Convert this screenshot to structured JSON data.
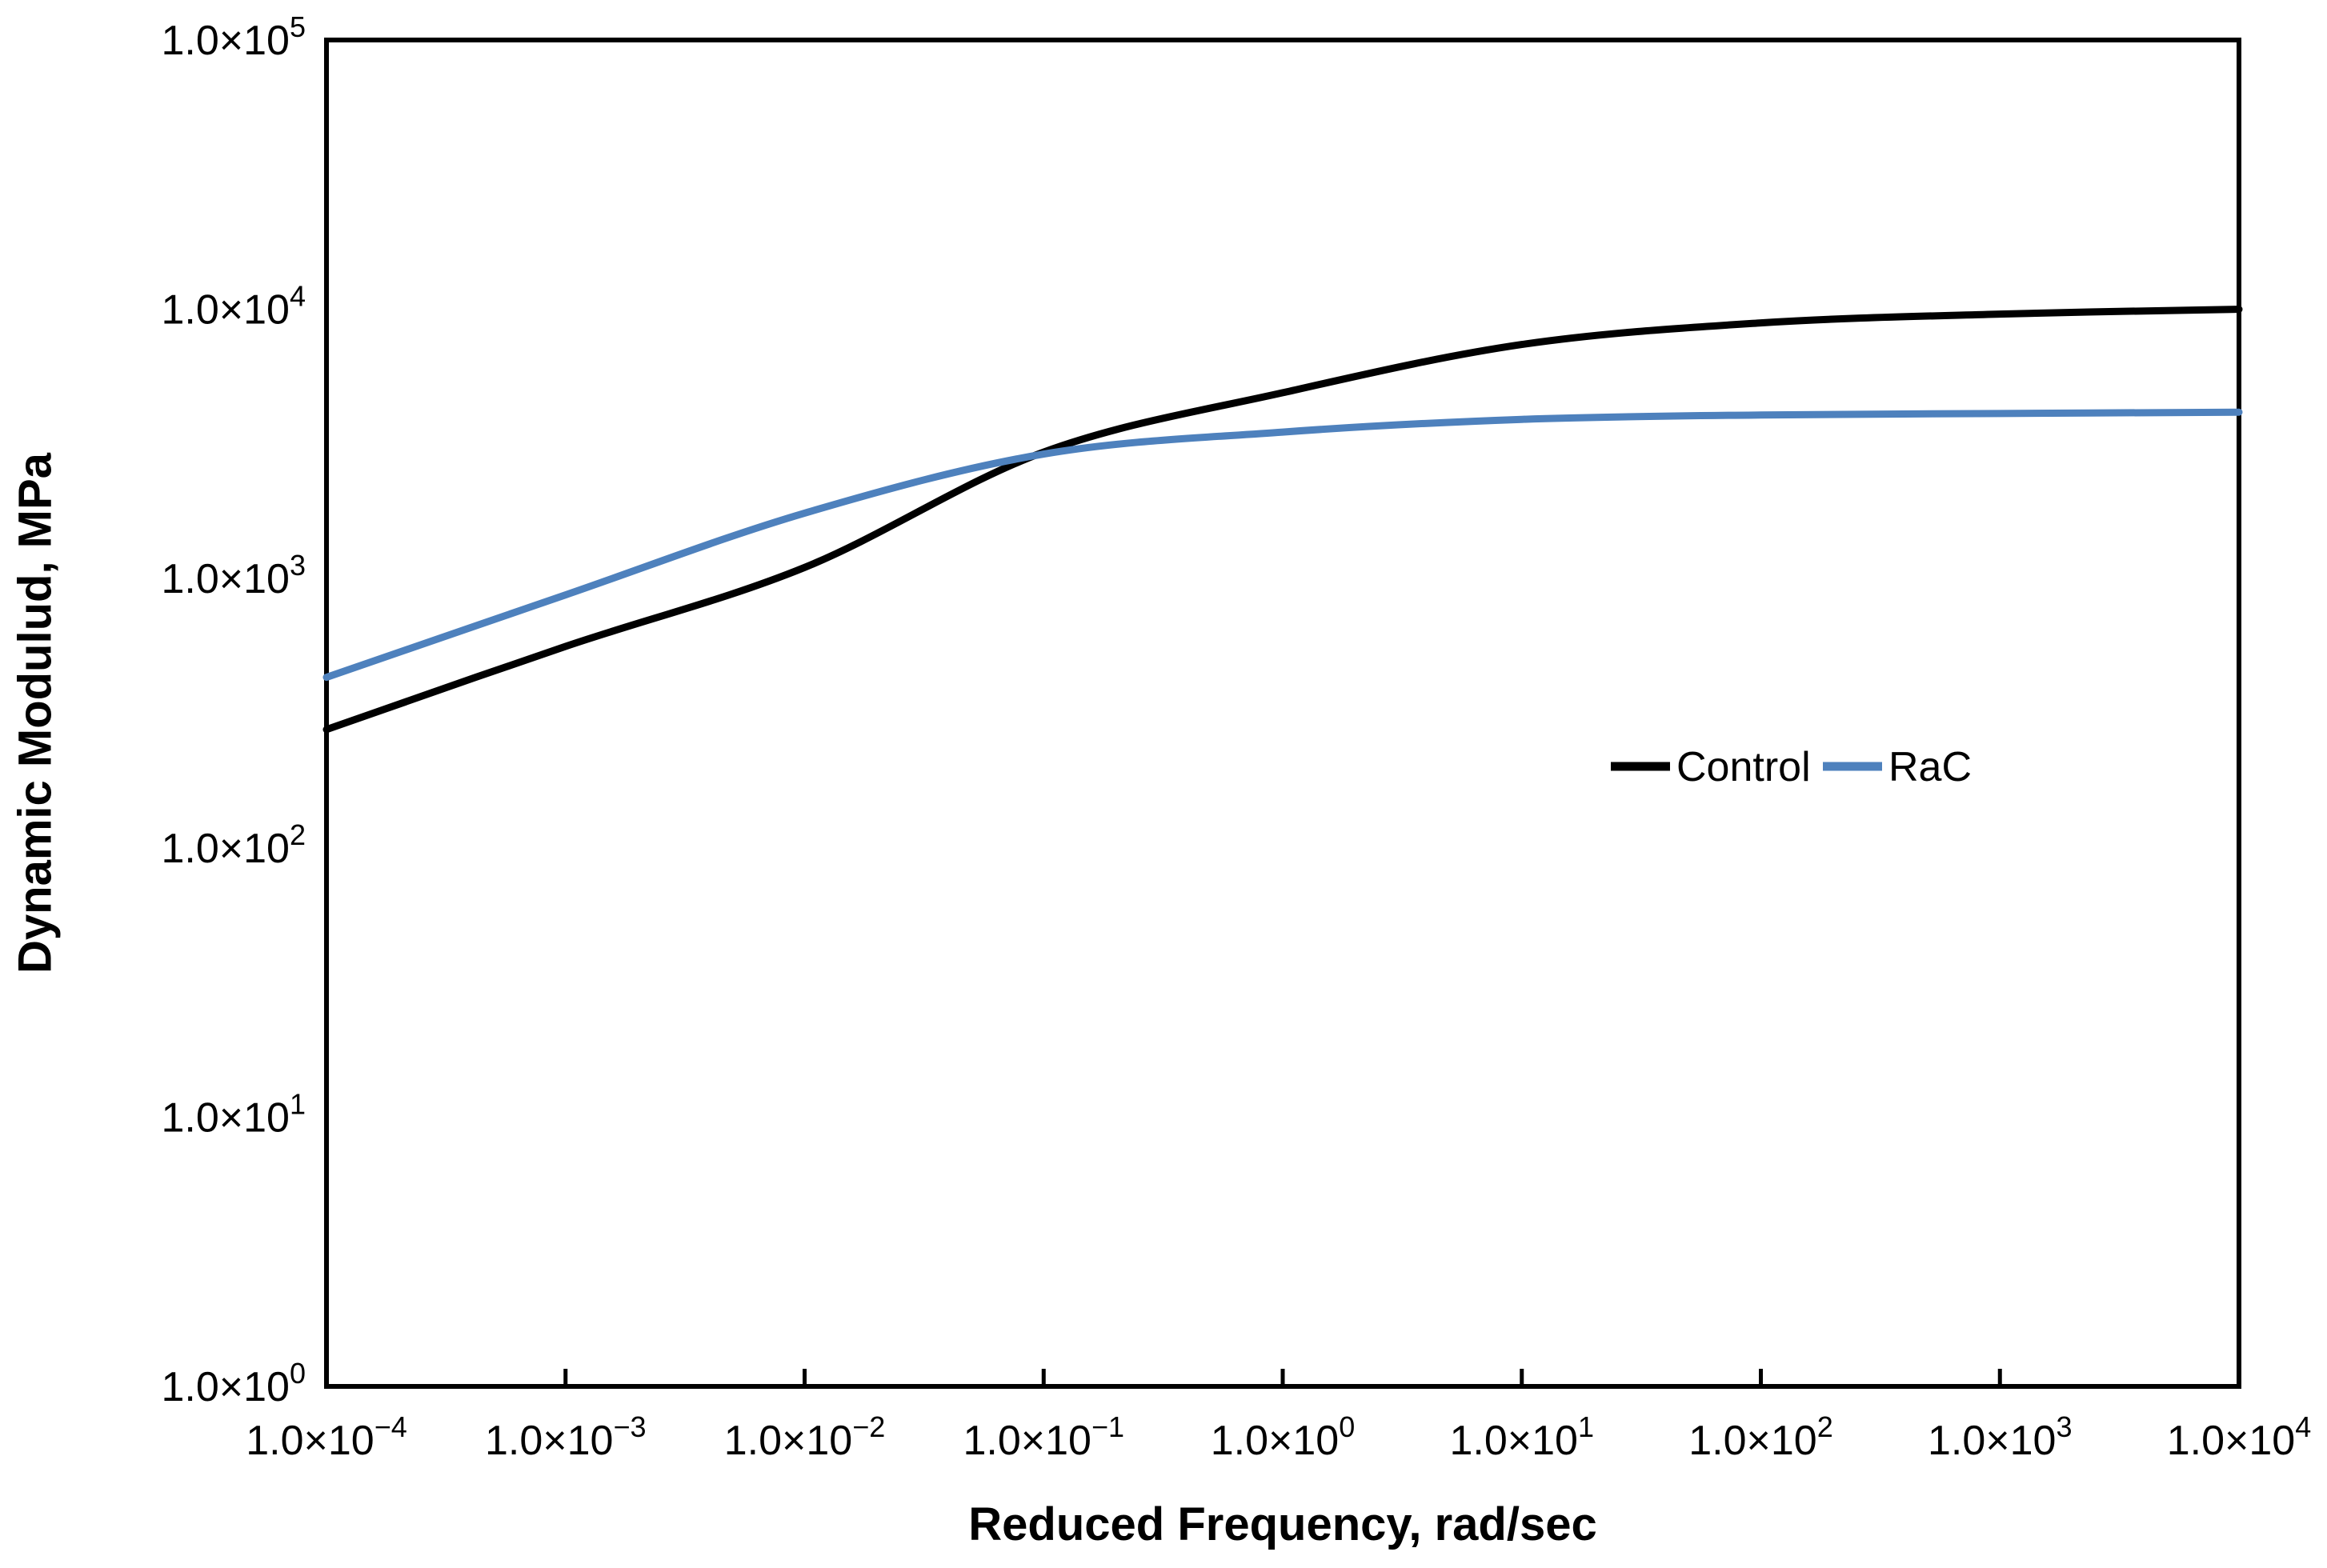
{
  "axes": {
    "x_title": "Reduced Frequency, rad/sec",
    "y_title": "Dynamic Modulud, MPa"
  },
  "tick_format": {
    "mantissa": "1.0",
    "times_sign": "×",
    "base": "10",
    "minus_sign": "−"
  },
  "legend": {
    "items": [
      {
        "label": "Control",
        "color": "#000000"
      },
      {
        "label": "RaC",
        "color": "#4e81bd"
      }
    ]
  },
  "chart_data": {
    "type": "line",
    "title": "",
    "xlabel": "Reduced Frequency, rad/sec",
    "ylabel": "Dynamic Modulud, MPa",
    "x_scale": "log",
    "y_scale": "log",
    "xlim": [
      0.0001,
      10000
    ],
    "ylim": [
      1,
      100000
    ],
    "x_tick_exponents": [
      -4,
      -3,
      -2,
      -1,
      0,
      1,
      2,
      3,
      4
    ],
    "y_tick_exponents": [
      0,
      1,
      2,
      3,
      4,
      5
    ],
    "grid": false,
    "legend_position": "inside-right-middle",
    "x": [
      0.0001,
      0.001,
      0.01,
      0.1,
      1,
      10,
      100,
      1000,
      10000
    ],
    "series": [
      {
        "name": "Control",
        "color": "#000000",
        "values": [
          275,
          560,
          1100,
          2950,
          4900,
          7400,
          8900,
          9600,
          10000
        ]
      },
      {
        "name": "RaC",
        "color": "#4e81bd",
        "values": [
          430,
          870,
          1750,
          2900,
          3500,
          3900,
          4050,
          4100,
          4150
        ]
      }
    ],
    "annotations": {
      "crossover": {
        "x": 0.09,
        "y": 2900
      }
    }
  }
}
